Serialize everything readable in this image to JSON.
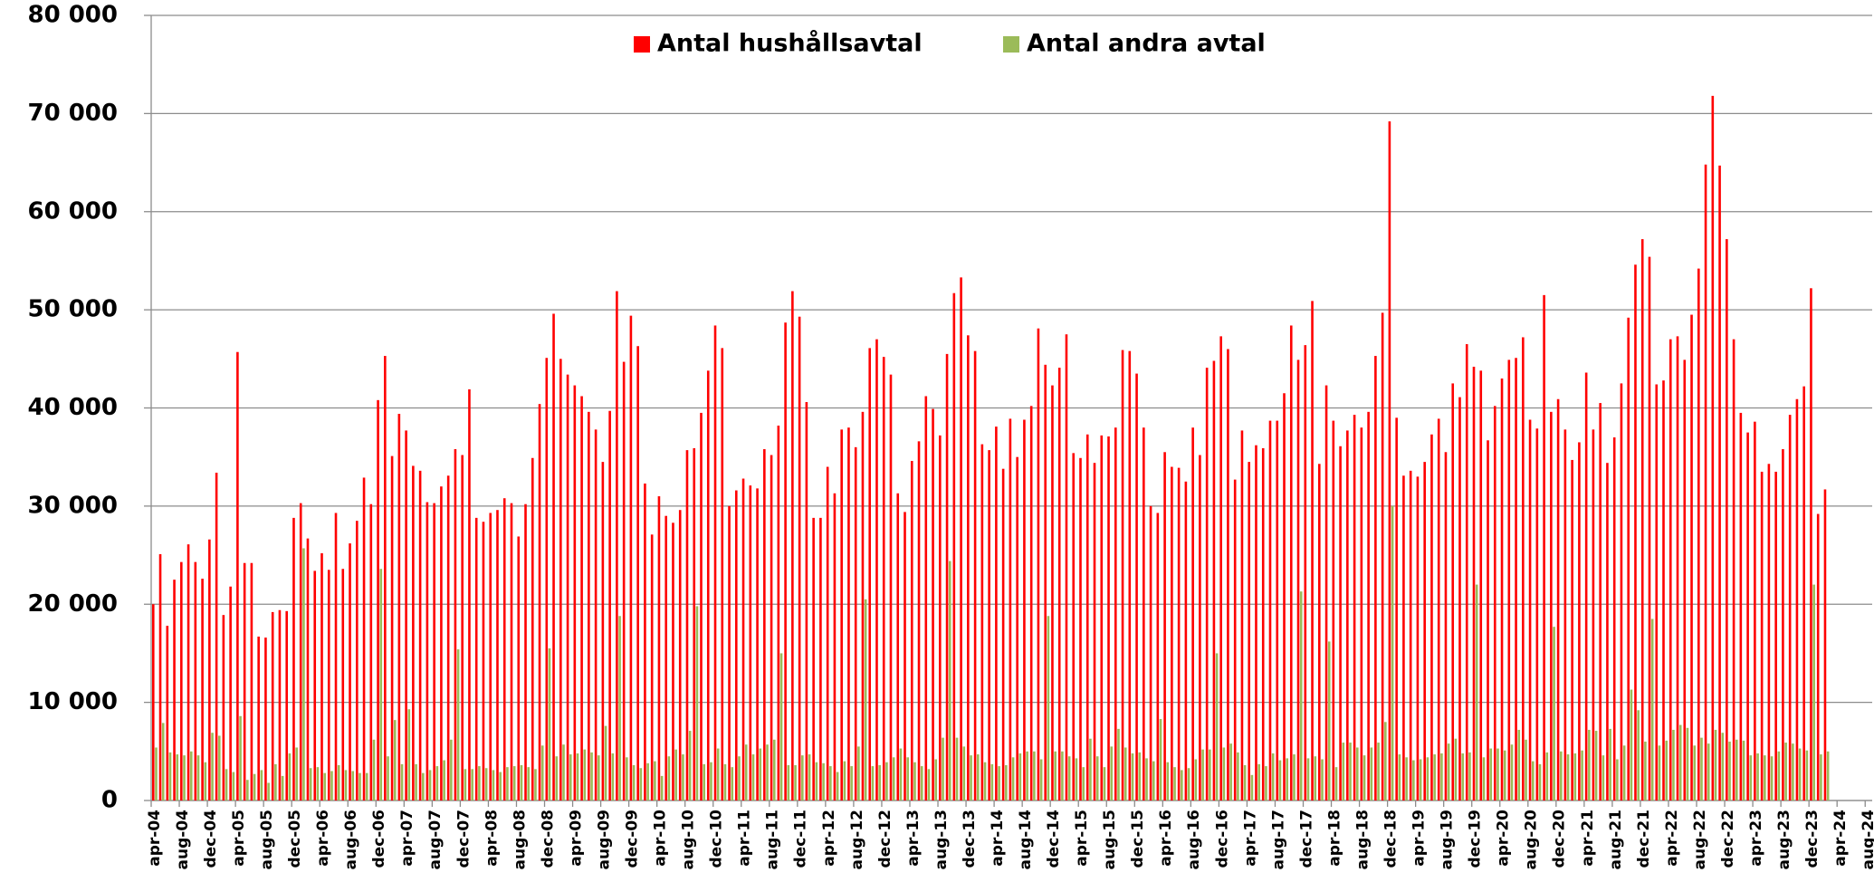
{
  "chart_data": {
    "type": "bar",
    "categories": [
      "apr-04",
      null,
      null,
      null,
      "aug-04",
      null,
      null,
      null,
      "dec-04",
      null,
      null,
      null,
      "apr-05",
      null,
      null,
      null,
      "aug-05",
      null,
      null,
      null,
      "dec-05",
      null,
      null,
      null,
      "apr-06",
      null,
      null,
      null,
      "aug-06",
      null,
      null,
      null,
      "dec-06",
      null,
      null,
      null,
      "apr-07",
      null,
      null,
      null,
      "aug-07",
      null,
      null,
      null,
      "dec-07",
      null,
      null,
      null,
      "apr-08",
      null,
      null,
      null,
      "aug-08",
      null,
      null,
      null,
      "dec-08",
      null,
      null,
      null,
      "apr-09",
      null,
      null,
      null,
      "aug-09",
      null,
      null,
      null,
      "dec-09",
      null,
      null,
      null,
      "apr-10",
      null,
      null,
      null,
      "aug-10",
      null,
      null,
      null,
      "dec-10",
      null,
      null,
      null,
      "apr-11",
      null,
      null,
      null,
      "aug-11",
      null,
      null,
      null,
      "dec-11",
      null,
      null,
      null,
      "apr-12",
      null,
      null,
      null,
      "aug-12",
      null,
      null,
      null,
      "dec-12",
      null,
      null,
      null,
      "apr-13",
      null,
      null,
      null,
      "aug-13",
      null,
      null,
      null,
      "dec-13",
      null,
      null,
      null,
      "apr-14",
      null,
      null,
      null,
      "aug-14",
      null,
      null,
      null,
      "dec-14",
      null,
      null,
      null,
      "apr-15",
      null,
      null,
      null,
      "aug-15",
      null,
      null,
      null,
      "dec-15",
      null,
      null,
      null,
      "apr-16",
      null,
      null,
      null,
      "aug-16",
      null,
      null,
      null,
      "dec-16",
      null,
      null,
      null,
      "apr-17",
      null,
      null,
      null,
      "aug-17",
      null,
      null,
      null,
      "dec-17",
      null,
      null,
      null,
      "apr-18",
      null,
      null,
      null,
      "aug-18",
      null,
      null,
      null,
      "dec-18",
      null,
      null,
      null,
      "apr-19",
      null,
      null,
      null,
      "aug-19",
      null,
      null,
      null,
      "dec-19",
      null,
      null,
      null,
      "apr-20",
      null,
      null,
      null,
      "aug-20",
      null,
      null,
      null,
      "dec-20",
      null,
      null,
      null,
      "apr-21",
      null,
      null,
      null,
      "aug-21",
      null,
      null,
      null,
      "dec-21",
      null,
      null,
      null,
      "apr-22",
      null,
      null,
      null,
      "aug-22",
      null,
      null,
      null,
      "dec-22",
      null,
      null,
      null,
      "apr-23",
      null,
      null,
      null,
      "aug-23",
      null,
      null,
      null,
      "dec-23",
      null,
      null,
      null,
      "apr-24",
      null,
      null,
      null,
      "aug-24"
    ],
    "series": [
      {
        "name": "Antal hushållsavtal",
        "color": "#ff0000",
        "values": [
          20000,
          25100,
          17800,
          22500,
          24300,
          26100,
          24300,
          22600,
          26600,
          33400,
          18900,
          21800,
          45700,
          24200,
          24200,
          16700,
          16600,
          19200,
          19400,
          19300,
          28800,
          30300,
          26700,
          23400,
          25200,
          23500,
          29300,
          23600,
          26200,
          28500,
          32900,
          30200,
          40800,
          45300,
          35100,
          39400,
          37700,
          34100,
          33600,
          30400,
          30300,
          32000,
          33100,
          35800,
          35200,
          41900,
          28800,
          28400,
          29300,
          29600,
          30800,
          30300,
          26900,
          30200,
          34900,
          40400,
          45100,
          49600,
          45000,
          43400,
          42300,
          41200,
          39600,
          37800,
          34500,
          39700,
          51900,
          44700,
          49400,
          46300,
          32300,
          27100,
          31000,
          29000,
          28300,
          29600,
          35700,
          35900,
          39500,
          43800,
          48400,
          46100,
          30000,
          31600,
          32800,
          32100,
          31800,
          35800,
          35200,
          38200,
          48700,
          51900,
          49300,
          40600,
          28800,
          28800,
          34000,
          31300,
          37800,
          38000,
          36000,
          39600,
          46100,
          47000,
          45200,
          43400,
          31300,
          29400,
          34600,
          36600,
          41200,
          39900,
          37200,
          45500,
          51700,
          53300,
          47400,
          45800,
          36300,
          35700,
          38100,
          33800,
          38900,
          35000,
          38800,
          40200,
          48100,
          44400,
          42300,
          44100,
          47500,
          35400,
          34900,
          37300,
          34400,
          37200,
          37100,
          38000,
          45900,
          45800,
          43500,
          38000,
          30000,
          29300,
          35500,
          34000,
          33900,
          32500,
          38000,
          35200,
          44100,
          44800,
          47300,
          46000,
          32700,
          37700,
          34500,
          36200,
          35900,
          38700,
          38700,
          41500,
          48400,
          44900,
          46400,
          50900,
          34300,
          42300,
          38700,
          36100,
          37700,
          39300,
          38000,
          39600,
          45300,
          49700,
          69200,
          39000,
          33100,
          33600,
          33000,
          34500,
          37300,
          38900,
          35500,
          42500,
          41100,
          46500,
          44200,
          43800,
          36700,
          40200,
          43000,
          44900,
          45100,
          47200,
          38800,
          37900,
          51500,
          39600,
          40900,
          37800,
          34700,
          36500,
          43600,
          37800,
          40500,
          34400,
          37000,
          42500,
          49200,
          54600,
          57200,
          55400,
          42400,
          42800,
          47000,
          47300,
          44900,
          49500,
          54200,
          64800,
          71800,
          64700,
          57200,
          47000,
          39500,
          37500,
          38600,
          33500,
          34300,
          33500,
          35800,
          39300,
          40900,
          42200,
          52200,
          29200,
          31700,
          null,
          null,
          null,
          null,
          null,
          null
        ]
      },
      {
        "name": "Antal andra avtal",
        "color": "#9bbb59",
        "values": [
          5400,
          7900,
          4900,
          4700,
          4600,
          5000,
          4600,
          3900,
          6900,
          6600,
          3200,
          2900,
          8600,
          2100,
          2700,
          3100,
          1800,
          3700,
          2500,
          4800,
          5400,
          25700,
          3300,
          3400,
          2800,
          3000,
          3600,
          3100,
          3000,
          2800,
          2800,
          6200,
          23600,
          4500,
          8200,
          3700,
          9300,
          3700,
          2800,
          3100,
          3500,
          4100,
          6200,
          15400,
          3200,
          3200,
          3500,
          3300,
          3100,
          2900,
          3400,
          3500,
          3600,
          3400,
          3200,
          5600,
          15500,
          4500,
          5700,
          4700,
          4800,
          5200,
          4900,
          4600,
          7600,
          4800,
          18800,
          4400,
          3600,
          3300,
          3800,
          4000,
          2500,
          4500,
          5200,
          4700,
          7100,
          19800,
          3700,
          3900,
          5300,
          3700,
          3400,
          4500,
          5700,
          4700,
          5300,
          5700,
          6200,
          15000,
          3600,
          3600,
          4600,
          4700,
          3900,
          3800,
          3500,
          2900,
          4000,
          3500,
          5500,
          20500,
          3500,
          3600,
          3900,
          4400,
          5300,
          4400,
          3900,
          3500,
          3200,
          4200,
          6400,
          24400,
          6400,
          5500,
          4600,
          4700,
          3900,
          3700,
          3500,
          3600,
          4400,
          4800,
          5000,
          5000,
          4200,
          18800,
          5000,
          5000,
          4500,
          4300,
          3400,
          6300,
          4500,
          3400,
          5500,
          7300,
          5400,
          4800,
          4900,
          4300,
          4000,
          8300,
          3900,
          3400,
          3100,
          3300,
          4200,
          5200,
          5200,
          15000,
          5400,
          5800,
          4900,
          3600,
          2600,
          3700,
          3500,
          4800,
          4100,
          4300,
          4700,
          21300,
          4300,
          4500,
          4200,
          16200,
          3400,
          5900,
          5900,
          5400,
          4600,
          5400,
          5900,
          8000,
          30000,
          4700,
          4400,
          4100,
          4200,
          4400,
          4700,
          4800,
          5800,
          6300,
          4800,
          4900,
          22000,
          4400,
          5300,
          5300,
          5100,
          5700,
          7200,
          6200,
          4000,
          3700,
          4900,
          17700,
          5000,
          4700,
          4800,
          5100,
          7200,
          7100,
          4600,
          7300,
          4200,
          5600,
          11300,
          9200,
          6000,
          18500,
          5600,
          6100,
          7200,
          7700,
          7400,
          5600,
          6400,
          5800,
          7200,
          6900,
          6000,
          6200,
          6100,
          4600,
          4800,
          4600,
          4500,
          5000,
          5900,
          5800,
          5300,
          5100,
          22000,
          4700,
          5000,
          null,
          null,
          null,
          null,
          null,
          null
        ]
      }
    ],
    "ylim": [
      0,
      80000
    ],
    "yticks": [
      0,
      {
        "value": 10000,
        "label": "10 000"
      },
      {
        "value": 20000,
        "label": "20 000"
      },
      {
        "value": 30000,
        "label": "30 000"
      },
      {
        "value": 40000,
        "label": "40 000"
      },
      {
        "value": 50000,
        "label": "50 000"
      },
      {
        "value": 60000,
        "label": "60 000"
      },
      {
        "value": 70000,
        "label": "70 000"
      },
      {
        "value": 80000,
        "label": "80 000"
      }
    ],
    "grid": true,
    "legend": "top"
  }
}
